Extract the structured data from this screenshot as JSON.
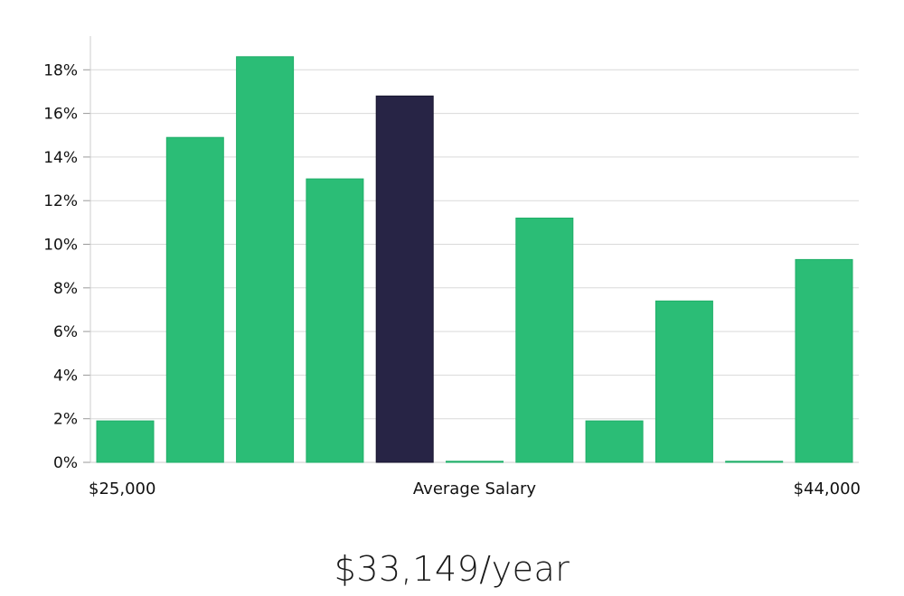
{
  "chart_data": {
    "type": "bar",
    "title": "",
    "xlabel": "Average Salary",
    "ylabel": "",
    "x_min_label": "$25,000",
    "x_max_label": "$44,000",
    "ylim": [
      0,
      19
    ],
    "yticks": [
      0,
      2,
      4,
      6,
      8,
      10,
      12,
      14,
      16,
      18
    ],
    "ytick_labels": [
      "0%",
      "2%",
      "4%",
      "6%",
      "8%",
      "10%",
      "12%",
      "14%",
      "16%",
      "18%"
    ],
    "values": [
      1.9,
      14.9,
      18.6,
      13.0,
      16.8,
      0.0,
      11.2,
      1.9,
      7.4,
      0.0,
      9.3
    ],
    "highlight_index": 4,
    "colors": {
      "bar": "#2bbd76",
      "bar_edge": "#1fae68",
      "highlight": "#272445",
      "grid": "#d9d9d9",
      "axis": "#cccccc"
    },
    "grid": true
  },
  "summary": {
    "salary": "$33,149/year"
  }
}
